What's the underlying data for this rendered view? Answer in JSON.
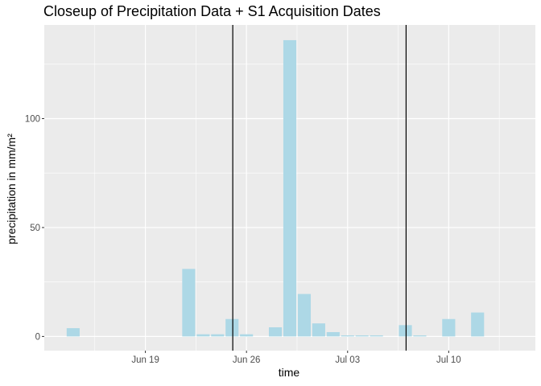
{
  "chart_data": {
    "type": "bar",
    "title": "Closeup of Precipitation Data + S1 Acquisition Dates",
    "xlabel": "time",
    "ylabel": "precipitation in mm/m²",
    "x_axis_type": "date",
    "xlim": [
      "2015-06-12",
      "2015-07-16"
    ],
    "ylim": [
      -6.5,
      143
    ],
    "y_ticks": [
      0,
      50,
      100
    ],
    "x_ticks": [
      {
        "date": "2015-06-19",
        "label": "Jun 19"
      },
      {
        "date": "2015-06-26",
        "label": "Jun 26"
      },
      {
        "date": "2015-07-03",
        "label": "Jul 03"
      },
      {
        "date": "2015-07-10",
        "label": "Jul 10"
      }
    ],
    "grid": true,
    "bar_color": "#add8e6",
    "vline_color": "#000000",
    "points": [
      {
        "date": "2015-06-14",
        "value": 3.8
      },
      {
        "date": "2015-06-15",
        "value": 0
      },
      {
        "date": "2015-06-16",
        "value": 0
      },
      {
        "date": "2015-06-17",
        "value": 0
      },
      {
        "date": "2015-06-18",
        "value": 0
      },
      {
        "date": "2015-06-19",
        "value": 0
      },
      {
        "date": "2015-06-20",
        "value": 0
      },
      {
        "date": "2015-06-21",
        "value": 0
      },
      {
        "date": "2015-06-22",
        "value": 31
      },
      {
        "date": "2015-06-23",
        "value": 1
      },
      {
        "date": "2015-06-24",
        "value": 1
      },
      {
        "date": "2015-06-25",
        "value": 8
      },
      {
        "date": "2015-06-26",
        "value": 1
      },
      {
        "date": "2015-06-27",
        "value": 0
      },
      {
        "date": "2015-06-28",
        "value": 4.2
      },
      {
        "date": "2015-06-29",
        "value": 136
      },
      {
        "date": "2015-06-30",
        "value": 19.5
      },
      {
        "date": "2015-07-01",
        "value": 6
      },
      {
        "date": "2015-07-02",
        "value": 2
      },
      {
        "date": "2015-07-03",
        "value": 0.5
      },
      {
        "date": "2015-07-04",
        "value": 0.5
      },
      {
        "date": "2015-07-05",
        "value": 0.5
      },
      {
        "date": "2015-07-06",
        "value": 0
      },
      {
        "date": "2015-07-07",
        "value": 5.2
      },
      {
        "date": "2015-07-08",
        "value": 0.5
      },
      {
        "date": "2015-07-09",
        "value": 0
      },
      {
        "date": "2015-07-10",
        "value": 8
      },
      {
        "date": "2015-07-11",
        "value": 0
      },
      {
        "date": "2015-07-12",
        "value": 11
      }
    ],
    "vlines": [
      "2015-06-25",
      "2015-07-07"
    ]
  }
}
